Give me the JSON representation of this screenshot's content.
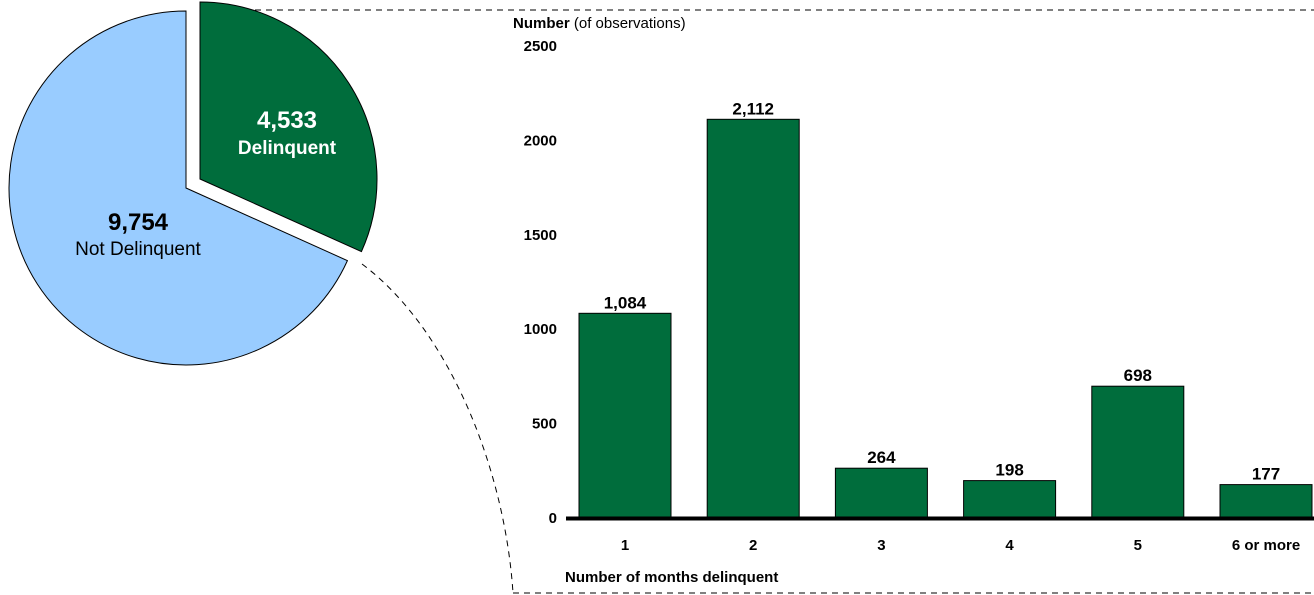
{
  "chart_data": [
    {
      "type": "pie",
      "slices": [
        {
          "name": "Not Delinquent",
          "value": 9754,
          "value_label": "9,754",
          "label": "Not Delinquent",
          "color": "#99ccff",
          "exploded": false
        },
        {
          "name": "Delinquent",
          "value": 4533,
          "value_label": "4,533",
          "label": "Delinquent",
          "color": "#006d3c",
          "exploded": true
        }
      ]
    },
    {
      "type": "bar",
      "ylabel_bold": "Number",
      "ylabel_rest": " (of observations)",
      "xlabel": "Number of months delinquent",
      "categories": [
        "1",
        "2",
        "3",
        "4",
        "5",
        "6 or more"
      ],
      "values": [
        1084,
        2112,
        264,
        198,
        698,
        177
      ],
      "data_labels": [
        "1,084",
        "2,112",
        "264",
        "198",
        "698",
        "177"
      ],
      "ylim": [
        0,
        2500
      ],
      "yticks": [
        0,
        500,
        1000,
        1500,
        2000,
        2500
      ],
      "ytick_labels": [
        "0",
        "500",
        "1000",
        "1500",
        "2000",
        "2500"
      ],
      "bar_color": "#006d3c",
      "grid": false,
      "legend": "none"
    }
  ]
}
